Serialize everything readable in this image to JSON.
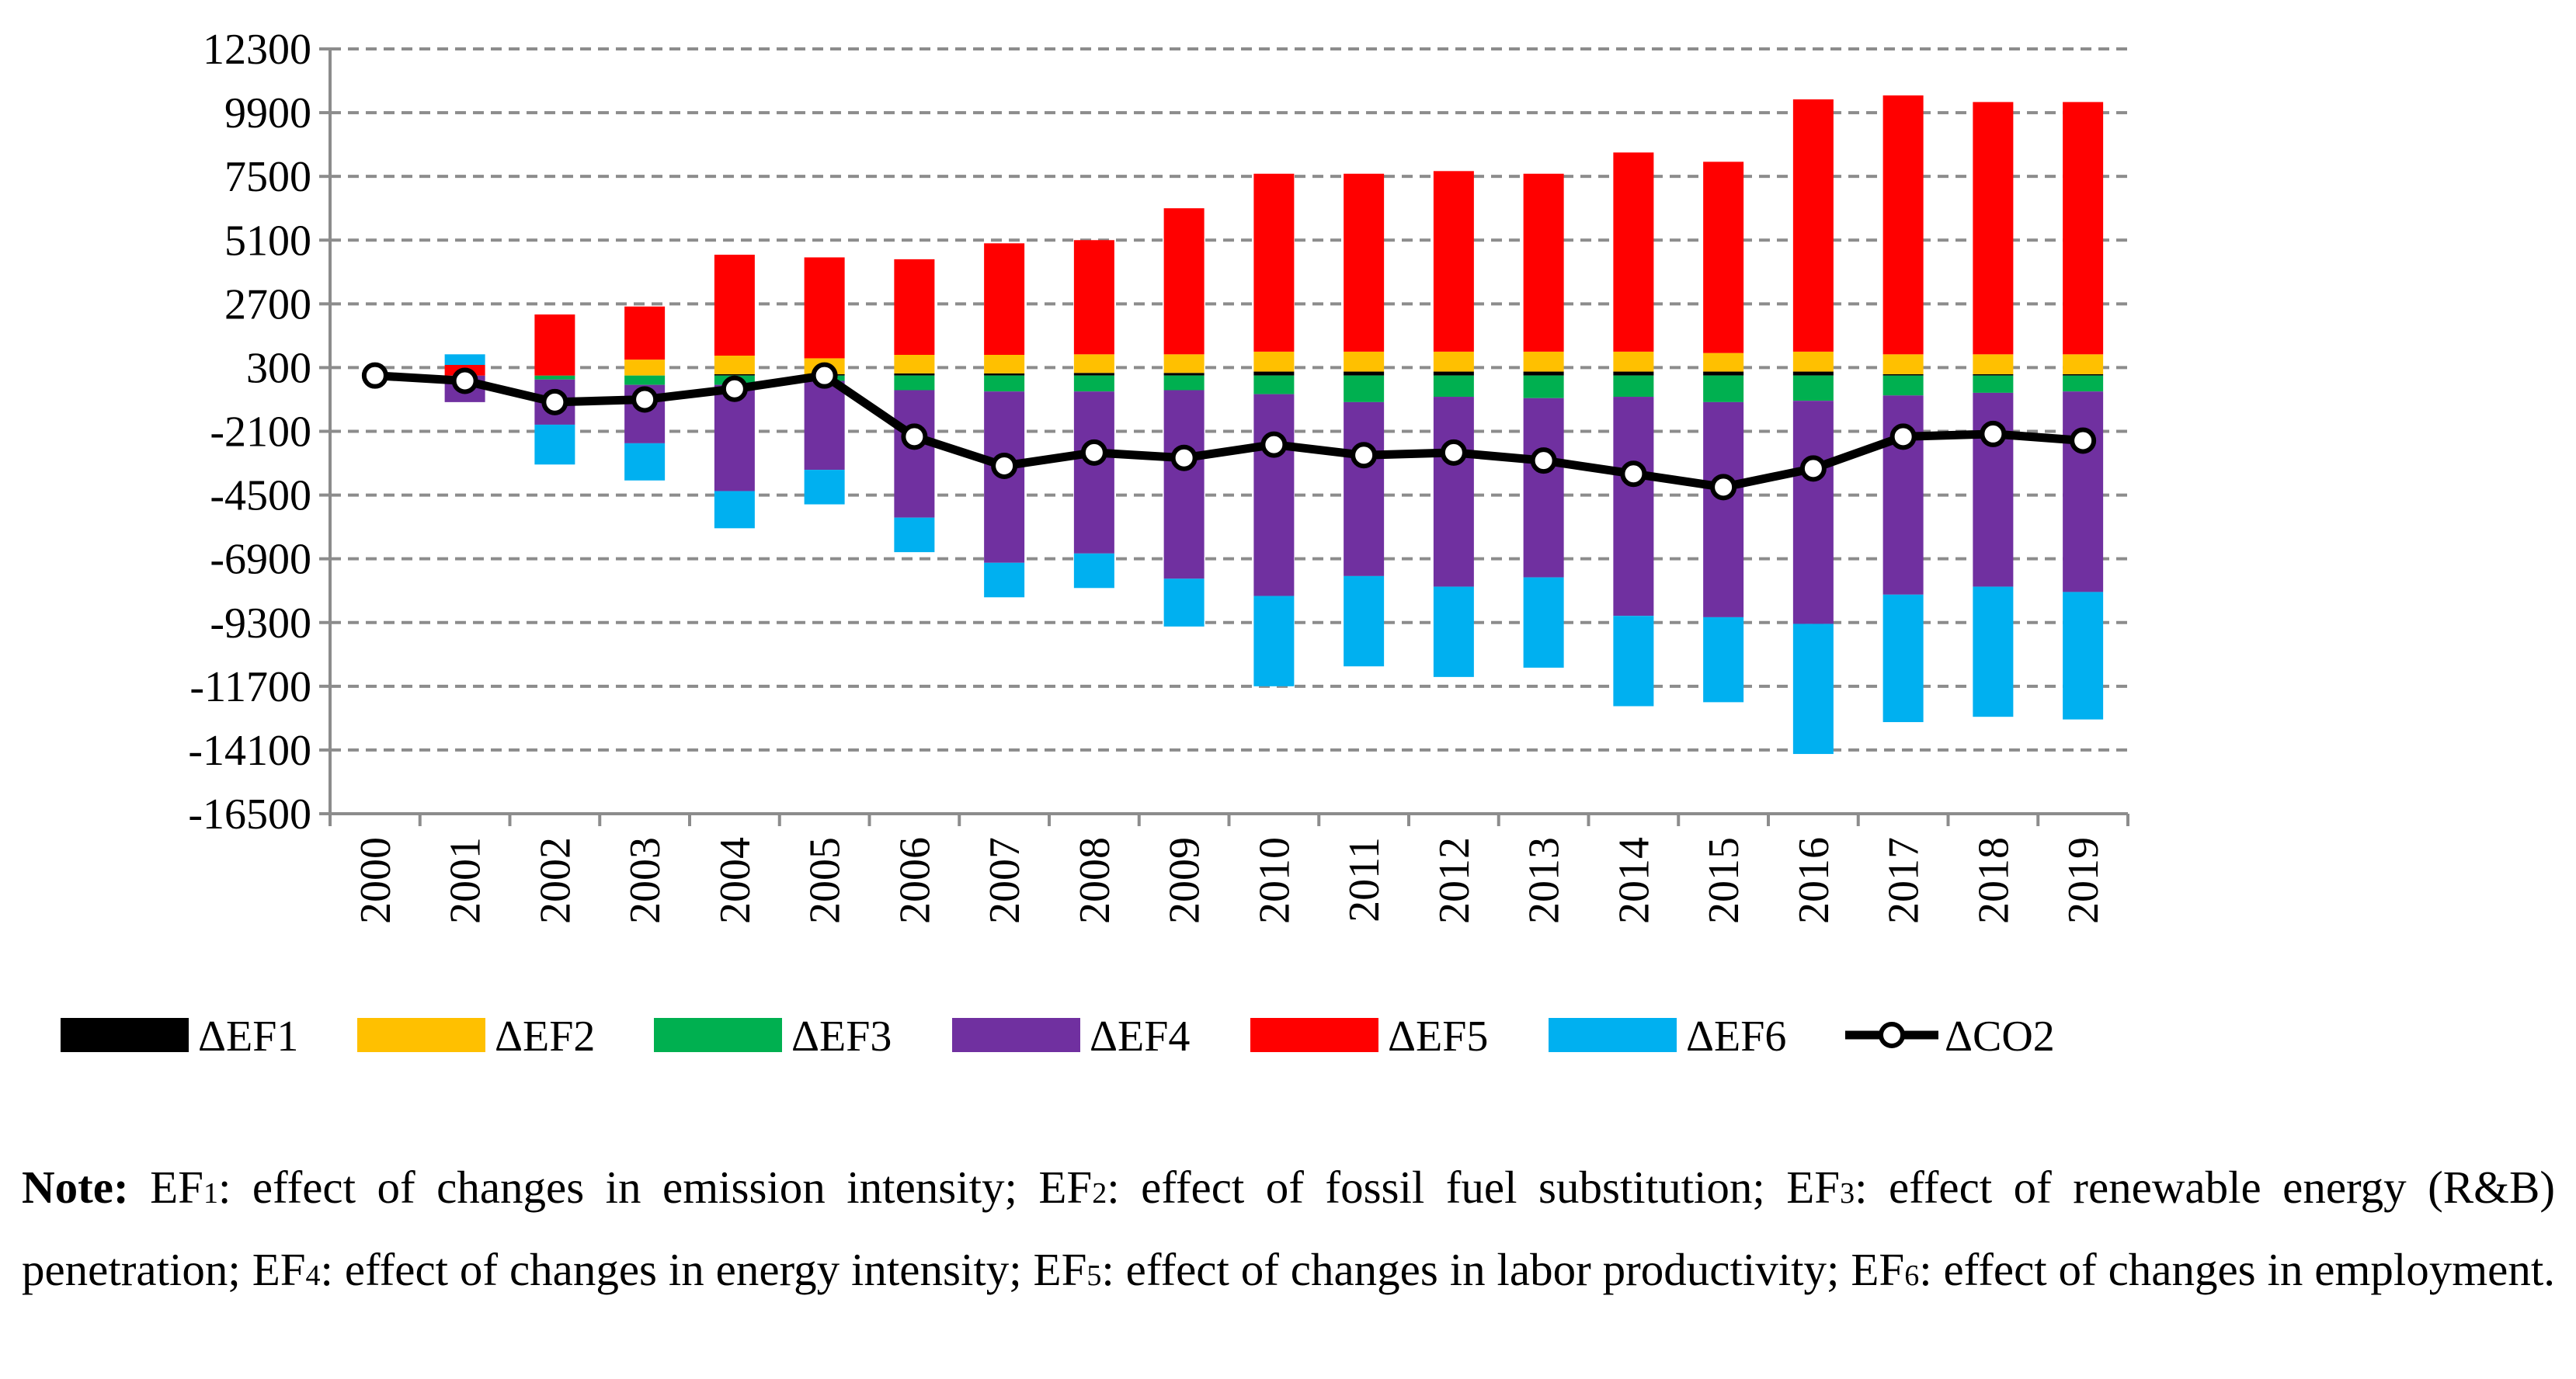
{
  "chart_data": {
    "type": "bar",
    "stacked": true,
    "title": "",
    "xlabel": "",
    "ylabel": "",
    "ylim": [
      -16500,
      12300
    ],
    "yticks": [
      "12300",
      "9900",
      "7500",
      "5100",
      "2700",
      "300",
      "-2100",
      "-4500",
      "-6900",
      "-9300",
      "-11700",
      "-14100",
      "-16500"
    ],
    "ytick_values": [
      12300,
      9900,
      7500,
      5100,
      2700,
      300,
      -2100,
      -4500,
      -6900,
      -9300,
      -11700,
      -14100,
      -16500
    ],
    "categories": [
      "2000",
      "2001",
      "2002",
      "2003",
      "2004",
      "2005",
      "2006",
      "2007",
      "2008",
      "2009",
      "2010",
      "2011",
      "2012",
      "2013",
      "2014",
      "2015",
      "2016",
      "2017",
      "2018",
      "2019"
    ],
    "series": [
      {
        "name": "ΔEF1",
        "color": "#000000",
        "kind": "bar",
        "values": [
          0,
          0,
          0,
          0,
          50,
          50,
          80,
          80,
          100,
          100,
          150,
          150,
          150,
          150,
          150,
          150,
          150,
          50,
          50,
          50
        ]
      },
      {
        "name": "ΔEF2",
        "color": "#FFC000",
        "kind": "bar",
        "values": [
          0,
          0,
          0,
          600,
          700,
          600,
          700,
          700,
          700,
          700,
          750,
          750,
          750,
          750,
          750,
          700,
          750,
          750,
          750,
          750
        ]
      },
      {
        "name": "ΔEF3",
        "color": "#00B050",
        "kind": "bar",
        "values": [
          0,
          0,
          -150,
          -350,
          -350,
          -200,
          -550,
          -600,
          -600,
          -550,
          -700,
          -1000,
          -800,
          -850,
          -800,
          -1000,
          -950,
          -750,
          -650,
          -600
        ]
      },
      {
        "name": "ΔEF4",
        "color": "#7030A0",
        "kind": "bar",
        "values": [
          0,
          -1000,
          -1700,
          -2200,
          -4000,
          -3350,
          -4800,
          -6450,
          -6100,
          -7100,
          -7600,
          -6550,
          -7150,
          -6750,
          -8250,
          -8100,
          -8400,
          -7500,
          -7300,
          -7550
        ]
      },
      {
        "name": "ΔEF5",
        "color": "#FF0000",
        "kind": "bar",
        "values": [
          0,
          400,
          2300,
          2000,
          3800,
          3800,
          3600,
          4200,
          4300,
          5500,
          6700,
          6700,
          6800,
          6700,
          7500,
          7200,
          9500,
          9750,
          9500,
          9500
        ]
      },
      {
        "name": "ΔEF6",
        "color": "#00B0F0",
        "kind": "bar",
        "values": [
          0,
          400,
          -1500,
          -1400,
          -1400,
          -1300,
          -1300,
          -1300,
          -1300,
          -1800,
          -3400,
          -3400,
          -3400,
          -3400,
          -3400,
          -3200,
          -4900,
          -4800,
          -4900,
          -4800
        ]
      },
      {
        "name": "ΔCO2",
        "color": "#000000",
        "kind": "line",
        "values": [
          0,
          -200,
          -1000,
          -900,
          -500,
          0,
          -2300,
          -3400,
          -2900,
          -3100,
          -2600,
          -3000,
          -2900,
          -3200,
          -3700,
          -4200,
          -3500,
          -2300,
          -2200,
          -2450
        ]
      }
    ],
    "legend_position": "bottom",
    "grid": "horizontal dashed"
  },
  "note": {
    "bold": "Note:",
    "parts": [
      {
        "label": "EF",
        "sub": "1",
        "text": ": effect of changes in emission intensity; "
      },
      {
        "label": "EF",
        "sub": "2",
        "text": ": effect of fossil fuel substitution; "
      },
      {
        "label": "EF",
        "sub": "3",
        "text": ": effect of renewable energy (R&B) penetration; "
      },
      {
        "label": "EF",
        "sub": "4",
        "text": ": effect of changes in energy intensity; "
      },
      {
        "label": "EF",
        "sub": "5",
        "text": ": effect of changes in labor productivity; "
      },
      {
        "label": "EF",
        "sub": "6",
        "text": ": effect of changes in employment."
      }
    ]
  }
}
